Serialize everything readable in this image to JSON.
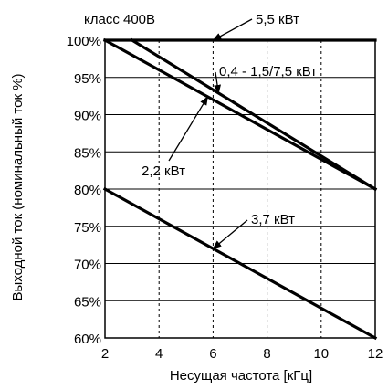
{
  "chart_data": {
    "type": "line",
    "title": "",
    "xlabel": "Несущая частота [кГц]",
    "ylabel": "Выходной ток (номинальный ток %)",
    "xlim": [
      2,
      12
    ],
    "ylim": [
      60,
      100
    ],
    "x_ticks": [
      2,
      4,
      6,
      8,
      10,
      12
    ],
    "x_tick_labels": [
      "2",
      "4",
      "6",
      "8",
      "10",
      "12"
    ],
    "y_ticks": [
      60,
      65,
      70,
      75,
      80,
      85,
      90,
      95,
      100
    ],
    "y_tick_labels": [
      "60%",
      "65%",
      "70%",
      "75%",
      "80%",
      "85%",
      "90%",
      "95%",
      "100%"
    ],
    "grid": {
      "horizontal": "solid",
      "vertical": "dashed"
    },
    "series": [
      {
        "name": "5,5 кВт",
        "x": [
          2,
          12
        ],
        "y": [
          100,
          100
        ]
      },
      {
        "name": "0,4 - 1,5/7,5 кВт",
        "x": [
          3,
          12
        ],
        "y": [
          100,
          80
        ]
      },
      {
        "name": "2,2 кВт",
        "x": [
          2,
          12
        ],
        "y": [
          100,
          80
        ]
      },
      {
        "name": "3,7 кВт",
        "x": [
          2,
          12
        ],
        "y": [
          80,
          60
        ]
      }
    ],
    "annotations": [
      {
        "text": "класс 400В"
      },
      {
        "text": "5,5 кВт",
        "series": 0,
        "at_x": 6.0
      },
      {
        "text": "0,4 - 1,5/7,5 кВт",
        "series": 1,
        "at_x": 6.2
      },
      {
        "text": "2,2 кВт",
        "series": 2,
        "at_x": 5.8
      },
      {
        "text": "3,7 кВт",
        "series": 3,
        "at_x": 6.0
      }
    ]
  }
}
